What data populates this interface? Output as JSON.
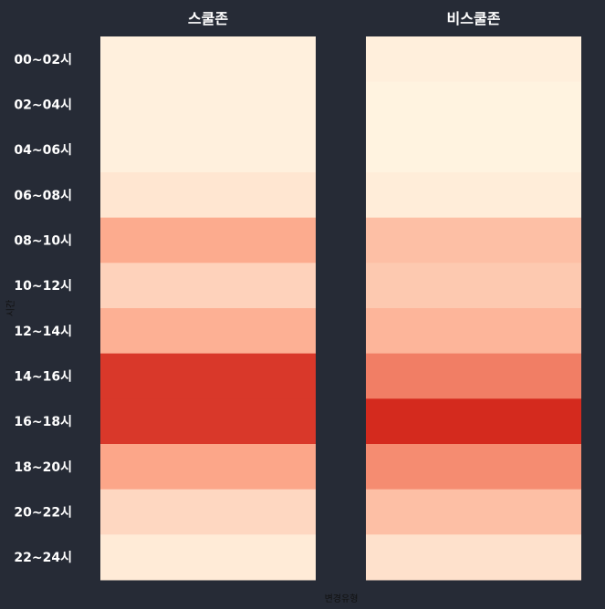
{
  "chart_data": {
    "type": "heatmap",
    "columns": [
      "스쿨존",
      "비스쿨존"
    ],
    "rows": [
      "00~02시",
      "02~04시",
      "04~06시",
      "06~08시",
      "08~10시",
      "10~12시",
      "12~14시",
      "14~16시",
      "16~18시",
      "18~20시",
      "20~22시",
      "22~24시"
    ],
    "values": [
      [
        0.5,
        0.6
      ],
      [
        0.5,
        0.2
      ],
      [
        0.5,
        0.2
      ],
      [
        1.5,
        0.8
      ],
      [
        7.5,
        5.5
      ],
      [
        3.5,
        4.5
      ],
      [
        7.0,
        6.5
      ],
      [
        16.0,
        11.0
      ],
      [
        16.0,
        17.0
      ],
      [
        8.0,
        10.0
      ],
      [
        3.0,
        5.5
      ],
      [
        1.0,
        2.0
      ]
    ],
    "xlabel": "변경유형",
    "ylabel": "시간",
    "color_scale": {
      "low": "#fff3e0",
      "mid": "#fca082",
      "high": "#d42a1e"
    },
    "background": "#262b36"
  }
}
